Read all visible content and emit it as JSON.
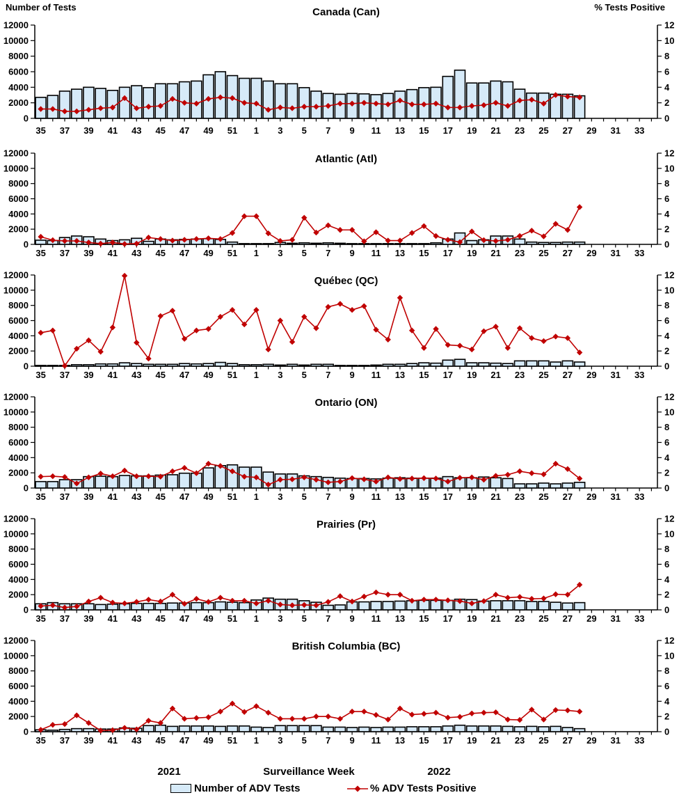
{
  "colors": {
    "bar_fill": "#D6EAF8",
    "bar_stroke": "#000000",
    "line": "#C00000",
    "text": "#000000"
  },
  "header": {
    "left_axis_title": "Number of Tests",
    "right_axis_title": "% Tests Positive"
  },
  "x_axis": {
    "year_left": "2021",
    "title": "Surveillance Week",
    "year_right": "2022"
  },
  "legend": {
    "bar_label": "Number of ADV Tests",
    "line_label": "% ADV Tests Positive"
  },
  "chart_data": {
    "type": "bar+line",
    "layout": "6 stacked panels sharing x axis; bars = number of tests (left axis), line with diamond markers = % tests positive (right axis)",
    "weeks": [
      "35",
      "36",
      "37",
      "38",
      "39",
      "40",
      "41",
      "42",
      "43",
      "44",
      "45",
      "46",
      "47",
      "48",
      "49",
      "50",
      "51",
      "52",
      "1",
      "2",
      "3",
      "4",
      "5",
      "6",
      "7",
      "8",
      "9",
      "10",
      "11",
      "12",
      "13",
      "14",
      "15",
      "16",
      "17",
      "18",
      "19",
      "20",
      "21",
      "22",
      "23",
      "24",
      "25",
      "26",
      "27",
      "28",
      "29",
      "30",
      "31",
      "32",
      "33",
      "34"
    ],
    "x_tick_labels": [
      "35",
      "37",
      "39",
      "41",
      "43",
      "45",
      "47",
      "49",
      "51",
      "1",
      "3",
      "5",
      "7",
      "9",
      "11",
      "13",
      "15",
      "17",
      "19",
      "21",
      "23",
      "25",
      "27",
      "29",
      "31",
      "33"
    ],
    "year_left": "2021",
    "year_right": "2022",
    "left_ylim": [
      0,
      12000
    ],
    "right_ylim": [
      0,
      12
    ],
    "left_yticks": [
      0,
      2000,
      4000,
      6000,
      8000,
      10000,
      12000
    ],
    "right_yticks": [
      0,
      2,
      4,
      6,
      8,
      10,
      12
    ],
    "panels": [
      {
        "title": "Canada (Can)",
        "tests": [
          2700,
          2950,
          3500,
          3750,
          4000,
          3850,
          3600,
          4000,
          4200,
          3950,
          4450,
          4450,
          4700,
          4800,
          5600,
          6000,
          5500,
          5150,
          5150,
          4800,
          4450,
          4450,
          3950,
          3500,
          3200,
          3100,
          3200,
          3150,
          3050,
          3200,
          3500,
          3700,
          3950,
          4000,
          5400,
          6200,
          4550,
          4550,
          4800,
          4700,
          3750,
          3250,
          3250,
          3100,
          3100,
          2900,
          null,
          null,
          null,
          null,
          null,
          null
        ],
        "pct_positive": [
          1.2,
          1.2,
          0.9,
          0.9,
          1.1,
          1.3,
          1.4,
          2.6,
          1.3,
          1.5,
          1.6,
          2.5,
          2.0,
          1.9,
          2.5,
          2.7,
          2.6,
          2.0,
          1.9,
          1.1,
          1.4,
          1.3,
          1.5,
          1.5,
          1.6,
          1.9,
          1.9,
          2.0,
          1.9,
          1.8,
          2.3,
          1.8,
          1.8,
          1.9,
          1.4,
          1.4,
          1.6,
          1.7,
          2.0,
          1.6,
          2.3,
          2.4,
          1.9,
          3.0,
          2.8,
          2.7,
          null,
          null,
          null,
          null,
          null,
          null
        ]
      },
      {
        "title": "Atlantic (Atl)",
        "tests": [
          550,
          500,
          900,
          1100,
          1000,
          700,
          500,
          600,
          800,
          400,
          700,
          600,
          650,
          700,
          750,
          650,
          300,
          100,
          100,
          100,
          250,
          150,
          200,
          150,
          200,
          150,
          100,
          100,
          100,
          100,
          100,
          100,
          100,
          200,
          700,
          1500,
          500,
          600,
          1100,
          1100,
          700,
          300,
          250,
          250,
          300,
          300,
          null,
          null,
          null,
          null,
          null,
          null
        ],
        "pct_positive": [
          1.0,
          0.55,
          0.45,
          0.45,
          0.25,
          0.1,
          0.25,
          0.05,
          0.1,
          0.9,
          0.7,
          0.5,
          0.6,
          0.7,
          0.8,
          0.7,
          1.5,
          3.7,
          3.7,
          1.45,
          0.45,
          0.6,
          3.5,
          1.55,
          2.5,
          1.9,
          1.9,
          0.4,
          1.6,
          0.5,
          0.5,
          1.5,
          2.4,
          1.1,
          0.6,
          0.3,
          1.7,
          0.55,
          0.45,
          0.6,
          1.1,
          1.8,
          1.05,
          2.7,
          1.9,
          4.9,
          null,
          null,
          null,
          null,
          null,
          null
        ]
      },
      {
        "title": "Québec (QC)",
        "tests": [
          100,
          100,
          100,
          200,
          200,
          300,
          300,
          450,
          350,
          250,
          250,
          250,
          350,
          300,
          350,
          500,
          350,
          200,
          200,
          250,
          150,
          250,
          150,
          250,
          250,
          100,
          100,
          100,
          150,
          250,
          250,
          350,
          450,
          400,
          800,
          900,
          450,
          450,
          400,
          350,
          700,
          700,
          700,
          550,
          700,
          550,
          null,
          null,
          null,
          null,
          null,
          null
        ],
        "pct_positive": [
          4.4,
          4.7,
          0.05,
          2.3,
          3.4,
          1.9,
          5.1,
          11.9,
          3.1,
          1.0,
          6.6,
          7.3,
          3.6,
          4.7,
          4.9,
          6.5,
          7.4,
          5.5,
          7.4,
          2.2,
          6.0,
          3.2,
          6.5,
          5.0,
          7.8,
          8.2,
          7.4,
          7.9,
          4.8,
          3.5,
          9.0,
          4.7,
          2.4,
          4.9,
          2.8,
          2.7,
          2.2,
          4.6,
          5.2,
          2.4,
          5.0,
          3.7,
          3.3,
          3.9,
          3.7,
          1.8,
          null,
          null,
          null,
          null,
          null,
          null
        ]
      },
      {
        "title": "Ontario (ON)",
        "tests": [
          850,
          850,
          1100,
          1100,
          1500,
          1550,
          1500,
          1650,
          1600,
          1600,
          1700,
          1750,
          1950,
          1950,
          2650,
          2950,
          3050,
          2750,
          2750,
          2100,
          1850,
          1850,
          1600,
          1500,
          1400,
          1300,
          1250,
          1250,
          1200,
          1300,
          1350,
          1300,
          1300,
          1300,
          1500,
          1350,
          1350,
          1450,
          1350,
          1250,
          550,
          550,
          650,
          550,
          650,
          750,
          null,
          null,
          null,
          null,
          null,
          null
        ],
        "pct_positive": [
          1.5,
          1.55,
          1.45,
          0.6,
          1.4,
          1.9,
          1.55,
          2.3,
          1.55,
          1.55,
          1.5,
          2.2,
          2.65,
          1.95,
          3.2,
          2.9,
          2.2,
          1.5,
          1.4,
          0.45,
          1.1,
          1.15,
          1.4,
          1.1,
          0.75,
          0.85,
          1.3,
          1.15,
          0.85,
          1.4,
          1.2,
          1.25,
          1.3,
          1.25,
          0.85,
          1.35,
          1.4,
          1.1,
          1.6,
          1.75,
          2.2,
          1.95,
          1.8,
          3.2,
          2.5,
          1.25,
          null,
          null,
          null,
          null,
          null,
          null
        ]
      },
      {
        "title": "Prairies (Pr)",
        "tests": [
          800,
          950,
          800,
          800,
          800,
          700,
          750,
          800,
          850,
          850,
          850,
          900,
          900,
          950,
          950,
          1050,
          1000,
          950,
          1300,
          1550,
          1400,
          1400,
          1200,
          1000,
          600,
          650,
          1050,
          1050,
          1100,
          1100,
          1150,
          1200,
          1250,
          1250,
          1250,
          1400,
          1350,
          1150,
          1200,
          1200,
          1200,
          1100,
          1100,
          1000,
          900,
          950,
          null,
          null,
          null,
          null,
          null,
          null
        ],
        "pct_positive": [
          0.5,
          0.6,
          0.3,
          0.45,
          1.1,
          1.6,
          0.95,
          0.85,
          1.05,
          1.35,
          1.1,
          2.0,
          0.8,
          1.45,
          1.05,
          1.6,
          1.2,
          1.2,
          0.85,
          1.2,
          0.7,
          0.6,
          0.65,
          0.6,
          1.05,
          1.8,
          1.1,
          1.75,
          2.3,
          2.0,
          2.0,
          1.2,
          1.35,
          1.35,
          1.25,
          1.15,
          0.85,
          1.15,
          2.0,
          1.6,
          1.7,
          1.45,
          1.5,
          2.05,
          2.0,
          3.3,
          null,
          null,
          null,
          null,
          null,
          null
        ]
      },
      {
        "title": "British Columbia (BC)",
        "tests": [
          250,
          200,
          300,
          400,
          400,
          350,
          350,
          500,
          450,
          800,
          850,
          700,
          750,
          750,
          750,
          700,
          750,
          750,
          600,
          550,
          800,
          800,
          800,
          800,
          600,
          600,
          550,
          600,
          550,
          600,
          600,
          650,
          650,
          650,
          750,
          850,
          750,
          750,
          750,
          700,
          650,
          700,
          650,
          700,
          550,
          400,
          null,
          null,
          null,
          null,
          null,
          null
        ],
        "pct_positive": [
          0.25,
          0.9,
          1.0,
          2.15,
          1.15,
          0.15,
          0.2,
          0.5,
          0.3,
          1.45,
          1.15,
          3.05,
          1.7,
          1.8,
          1.9,
          2.65,
          3.7,
          2.6,
          3.35,
          2.5,
          1.7,
          1.7,
          1.7,
          2.0,
          2.0,
          1.7,
          2.65,
          2.65,
          2.2,
          1.6,
          3.05,
          2.25,
          2.35,
          2.5,
          1.85,
          1.95,
          2.4,
          2.5,
          2.55,
          1.6,
          1.55,
          2.9,
          1.6,
          2.85,
          2.8,
          2.65,
          null,
          null,
          null,
          null,
          null,
          null
        ]
      }
    ]
  }
}
